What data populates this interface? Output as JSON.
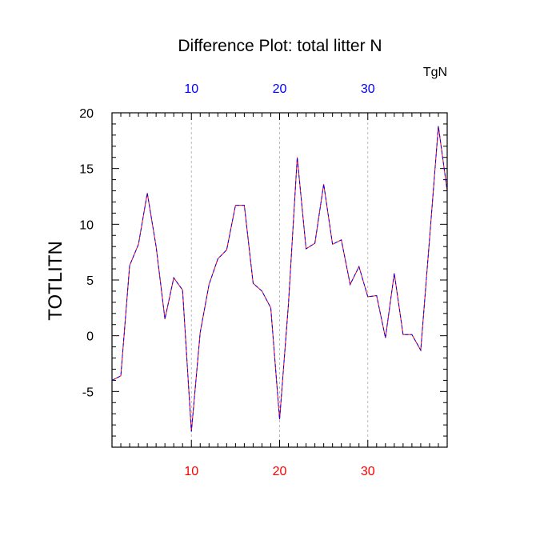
{
  "chart_data": {
    "type": "line",
    "title": "Difference Plot: total litter N",
    "ylabel": "TOTLITN",
    "units_label": "TgN",
    "xlim": [
      1,
      39
    ],
    "ylim": [
      -10,
      20
    ],
    "x_ticks": [
      10,
      20,
      30
    ],
    "y_ticks": [
      20,
      15,
      10,
      5,
      0,
      -5
    ],
    "grid": "vertical dashed at major x ticks",
    "colors": {
      "bottom_tick_labels": "#ff0000",
      "top_tick_labels": "#0000ff",
      "series_red": "#ff0000",
      "series_blue": "#0000ff",
      "gridline": "#aaaaaa"
    },
    "series": [
      {
        "values": [
          -4.0,
          -3.6,
          6.3,
          8.2,
          12.8,
          8.0,
          1.5,
          5.2,
          4.1,
          -8.6,
          0.3,
          4.6,
          6.9,
          7.7,
          11.7,
          11.7,
          4.7,
          4.0,
          2.5,
          -7.5,
          2.8,
          16.0,
          7.8,
          8.3,
          13.6,
          8.2,
          8.6,
          4.6,
          6.2,
          3.5,
          3.6,
          -0.2,
          5.6,
          0.1,
          0.1,
          -1.3,
          8.7,
          18.8,
          13.0
        ]
      }
    ]
  }
}
